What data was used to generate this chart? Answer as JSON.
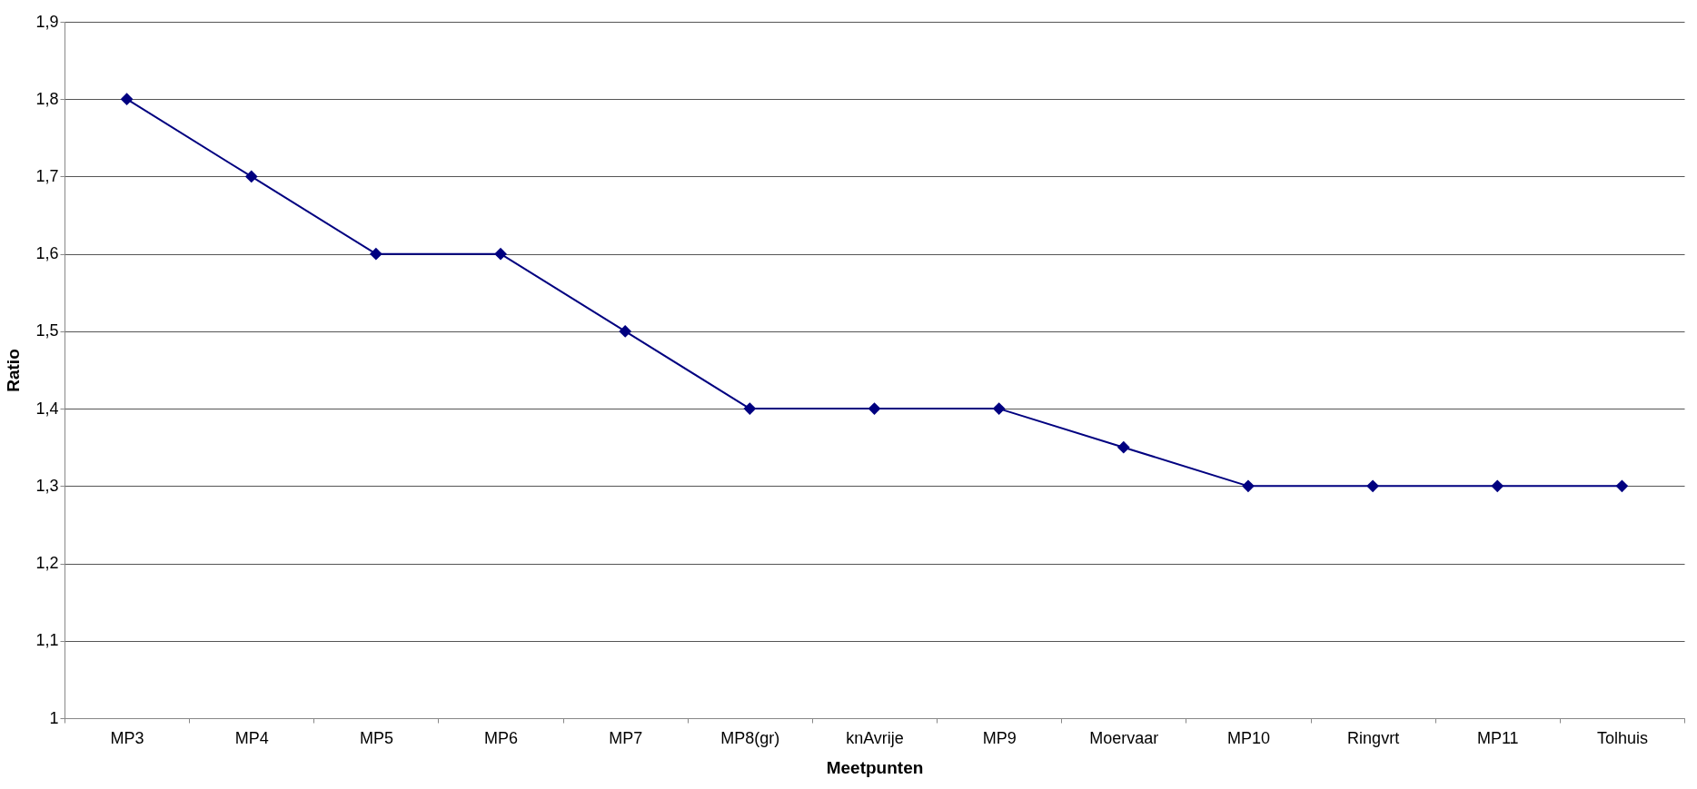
{
  "chart_data": {
    "type": "line",
    "xlabel": "Meetpunten",
    "ylabel": "Ratio",
    "categories": [
      "MP3",
      "MP4",
      "MP5",
      "MP6",
      "MP7",
      "MP8(gr)",
      "knAvrije",
      "MP9",
      "Moervaar",
      "MP10",
      "Ringvrt",
      "MP11",
      "Tolhuis"
    ],
    "series": [
      {
        "color": "#000080",
        "values": [
          1.8,
          1.7,
          1.6,
          1.6,
          1.5,
          1.4,
          1.4,
          1.4,
          1.35,
          1.3,
          1.3,
          1.3,
          1.3
        ]
      }
    ],
    "ylim": [
      1,
      1.9
    ],
    "yticks": [
      1,
      {
        "value": 1.1,
        "label": "1,1"
      },
      {
        "value": 1.2,
        "label": "1,2"
      },
      {
        "value": 1.3,
        "label": "1,3"
      },
      {
        "value": 1.4,
        "label": "1,4"
      },
      {
        "value": 1.5,
        "label": "1,5"
      },
      {
        "value": 1.6,
        "label": "1,6"
      },
      {
        "value": 1.7,
        "label": "1,7"
      },
      {
        "value": 1.8,
        "label": "1,8"
      },
      {
        "value": 1.9,
        "label": "1,9"
      }
    ],
    "grid": "y",
    "marker": "diamond",
    "line_style": "solid"
  }
}
